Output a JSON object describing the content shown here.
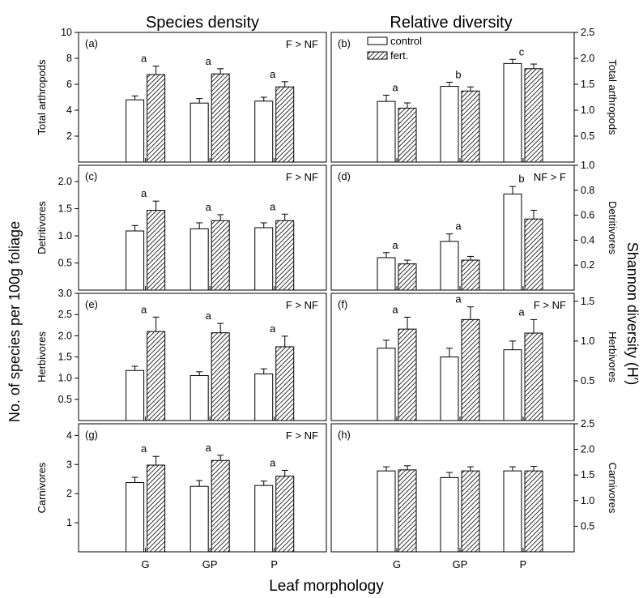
{
  "figure": {
    "col_titles": [
      "Species density",
      "Relative diversity"
    ],
    "y_label_left": "No. of species per 100g foliage",
    "y_label_right": "Shannon diversity (H′)",
    "x_label": "Leaf morphology",
    "legend": [
      "control",
      "fert."
    ]
  },
  "chart_data": [
    {
      "panel": "(a)",
      "type": "bar",
      "row_label": "Total arthropods",
      "categories": [
        "G",
        "GP",
        "P"
      ],
      "series": [
        {
          "name": "control",
          "values": [
            4.8,
            4.55,
            4.7
          ],
          "err": [
            0.3,
            0.35,
            0.3
          ]
        },
        {
          "name": "fert.",
          "values": [
            6.75,
            6.8,
            5.8
          ],
          "err": [
            0.65,
            0.4,
            0.4
          ]
        }
      ],
      "letters": [
        "a",
        "a",
        "a"
      ],
      "note": "F > NF",
      "ylim": [
        0,
        10
      ],
      "yticks": [
        "2",
        "4",
        "6",
        "8",
        "10"
      ]
    },
    {
      "panel": "(b)",
      "type": "bar",
      "row_label": "Total arthropods",
      "categories": [
        "G",
        "GP",
        "P"
      ],
      "series": [
        {
          "name": "control",
          "values": [
            1.17,
            1.46,
            1.9
          ],
          "err": [
            0.12,
            0.08,
            0.08
          ]
        },
        {
          "name": "fert.",
          "values": [
            1.04,
            1.37,
            1.8
          ],
          "err": [
            0.1,
            0.08,
            0.09
          ]
        }
      ],
      "letters": [
        "a",
        "b",
        "c"
      ],
      "note": "",
      "ylim": [
        0,
        2.5
      ],
      "yticks": [
        "0.5",
        "1.0",
        "1.5",
        "2.0",
        "2.5"
      ]
    },
    {
      "panel": "(c)",
      "type": "bar",
      "row_label": "Detritivores",
      "categories": [
        "G",
        "GP",
        "P"
      ],
      "series": [
        {
          "name": "control",
          "values": [
            1.09,
            1.13,
            1.15
          ],
          "err": [
            0.1,
            0.11,
            0.09
          ]
        },
        {
          "name": "fert.",
          "values": [
            1.47,
            1.28,
            1.28
          ],
          "err": [
            0.17,
            0.11,
            0.12
          ]
        }
      ],
      "letters": [
        "a",
        "a",
        "a"
      ],
      "note": "F > NF",
      "ylim": [
        0,
        2.3
      ],
      "yticks": [
        "0.5",
        "1.0",
        "1.5",
        "2.0"
      ]
    },
    {
      "panel": "(d)",
      "type": "bar",
      "row_label": "Detritivores",
      "categories": [
        "G",
        "GP",
        "P"
      ],
      "series": [
        {
          "name": "control",
          "values": [
            0.26,
            0.39,
            0.77
          ],
          "err": [
            0.04,
            0.06,
            0.06
          ]
        },
        {
          "name": "fert.",
          "values": [
            0.21,
            0.24,
            0.57
          ],
          "err": [
            0.03,
            0.03,
            0.07
          ]
        }
      ],
      "letters": [
        "a",
        "a",
        "b"
      ],
      "note": "NF > F",
      "ylim": [
        0,
        1.0
      ],
      "yticks": [
        "0.2",
        "0.4",
        "0.6",
        "0.8",
        "1.0"
      ]
    },
    {
      "panel": "(e)",
      "type": "bar",
      "row_label": "Herbivores",
      "categories": [
        "G",
        "GP",
        "P"
      ],
      "series": [
        {
          "name": "control",
          "values": [
            1.18,
            1.06,
            1.1
          ],
          "err": [
            0.1,
            0.09,
            0.12
          ]
        },
        {
          "name": "fert.",
          "values": [
            2.1,
            2.07,
            1.74
          ],
          "err": [
            0.34,
            0.22,
            0.25
          ]
        }
      ],
      "letters": [
        "a",
        "a",
        "a"
      ],
      "note": "F > NF",
      "ylim": [
        0,
        3.0
      ],
      "yticks": [
        "0.5",
        "1.0",
        "1.5",
        "2.0",
        "2.5",
        "3.0"
      ]
    },
    {
      "panel": "(f)",
      "type": "bar",
      "row_label": "Herbivores",
      "categories": [
        "G",
        "GP",
        "P"
      ],
      "series": [
        {
          "name": "control",
          "values": [
            0.91,
            0.8,
            0.89
          ],
          "err": [
            0.1,
            0.11,
            0.11
          ]
        },
        {
          "name": "fert.",
          "values": [
            1.15,
            1.27,
            1.1
          ],
          "err": [
            0.15,
            0.16,
            0.17
          ]
        }
      ],
      "letters": [
        "a",
        "a",
        "a"
      ],
      "note": "F > NF",
      "ylim": [
        0,
        1.6
      ],
      "yticks": [
        "0.5",
        "1.0",
        "1.5"
      ]
    },
    {
      "panel": "(g)",
      "type": "bar",
      "row_label": "Carnivores",
      "categories": [
        "G",
        "GP",
        "P"
      ],
      "series": [
        {
          "name": "control",
          "values": [
            2.38,
            2.25,
            2.28
          ],
          "err": [
            0.18,
            0.2,
            0.15
          ]
        },
        {
          "name": "fert.",
          "values": [
            2.98,
            3.14,
            2.6
          ],
          "err": [
            0.3,
            0.18,
            0.2
          ]
        }
      ],
      "letters": [
        "a",
        "a",
        "a"
      ],
      "note": "F > NF",
      "ylim": [
        0,
        4.4
      ],
      "yticks": [
        "1",
        "2",
        "3",
        "4"
      ]
    },
    {
      "panel": "(h)",
      "type": "bar",
      "row_label": "Carnivores",
      "categories": [
        "G",
        "GP",
        "P"
      ],
      "series": [
        {
          "name": "control",
          "values": [
            1.58,
            1.45,
            1.58
          ],
          "err": [
            0.08,
            0.1,
            0.08
          ]
        },
        {
          "name": "fert.",
          "values": [
            1.6,
            1.58,
            1.58
          ],
          "err": [
            0.08,
            0.08,
            0.09
          ]
        }
      ],
      "letters": [
        "",
        "",
        ""
      ],
      "note": "",
      "ylim": [
        0,
        2.5
      ],
      "yticks": [
        "0.5",
        "1.0",
        "1.5",
        "2.0",
        "2.5"
      ]
    }
  ]
}
